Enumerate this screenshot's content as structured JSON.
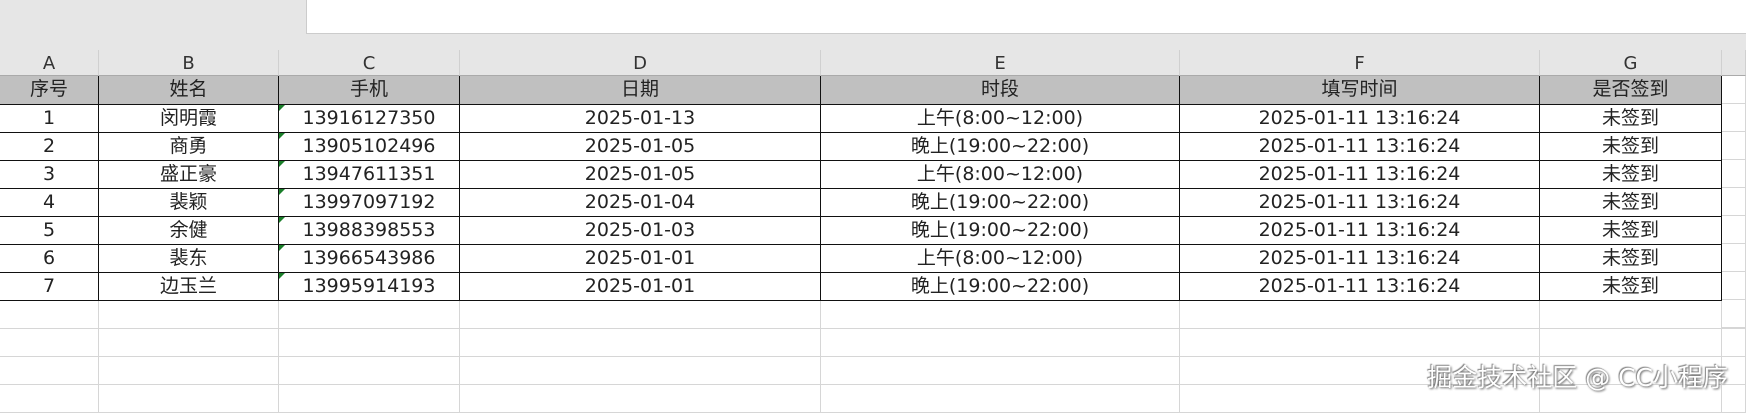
{
  "columns": [
    "A",
    "B",
    "C",
    "D",
    "E",
    "F",
    "G"
  ],
  "headers": [
    "序号",
    "姓名",
    "手机",
    "日期",
    "时段",
    "填写时间",
    "是否签到"
  ],
  "rows": [
    [
      "1",
      "闵明霞",
      "13916127350",
      "2025-01-13",
      "上午(8:00~12:00)",
      "2025-01-11 13:16:24",
      "未签到"
    ],
    [
      "2",
      "商勇",
      "13905102496",
      "2025-01-05",
      "晚上(19:00~22:00)",
      "2025-01-11 13:16:24",
      "未签到"
    ],
    [
      "3",
      "盛正豪",
      "13947611351",
      "2025-01-05",
      "上午(8:00~12:00)",
      "2025-01-11 13:16:24",
      "未签到"
    ],
    [
      "4",
      "裴颖",
      "13997097192",
      "2025-01-04",
      "晚上(19:00~22:00)",
      "2025-01-11 13:16:24",
      "未签到"
    ],
    [
      "5",
      "余健",
      "13988398553",
      "2025-01-03",
      "晚上(19:00~22:00)",
      "2025-01-11 13:16:24",
      "未签到"
    ],
    [
      "6",
      "裴东",
      "13966543986",
      "2025-01-01",
      "上午(8:00~12:00)",
      "2025-01-11 13:16:24",
      "未签到"
    ],
    [
      "7",
      "边玉兰",
      "13995914193",
      "2025-01-01",
      "晚上(19:00~22:00)",
      "2025-01-11 13:16:24",
      "未签到"
    ]
  ],
  "watermark": "掘金技术社区 @ CC小程序"
}
